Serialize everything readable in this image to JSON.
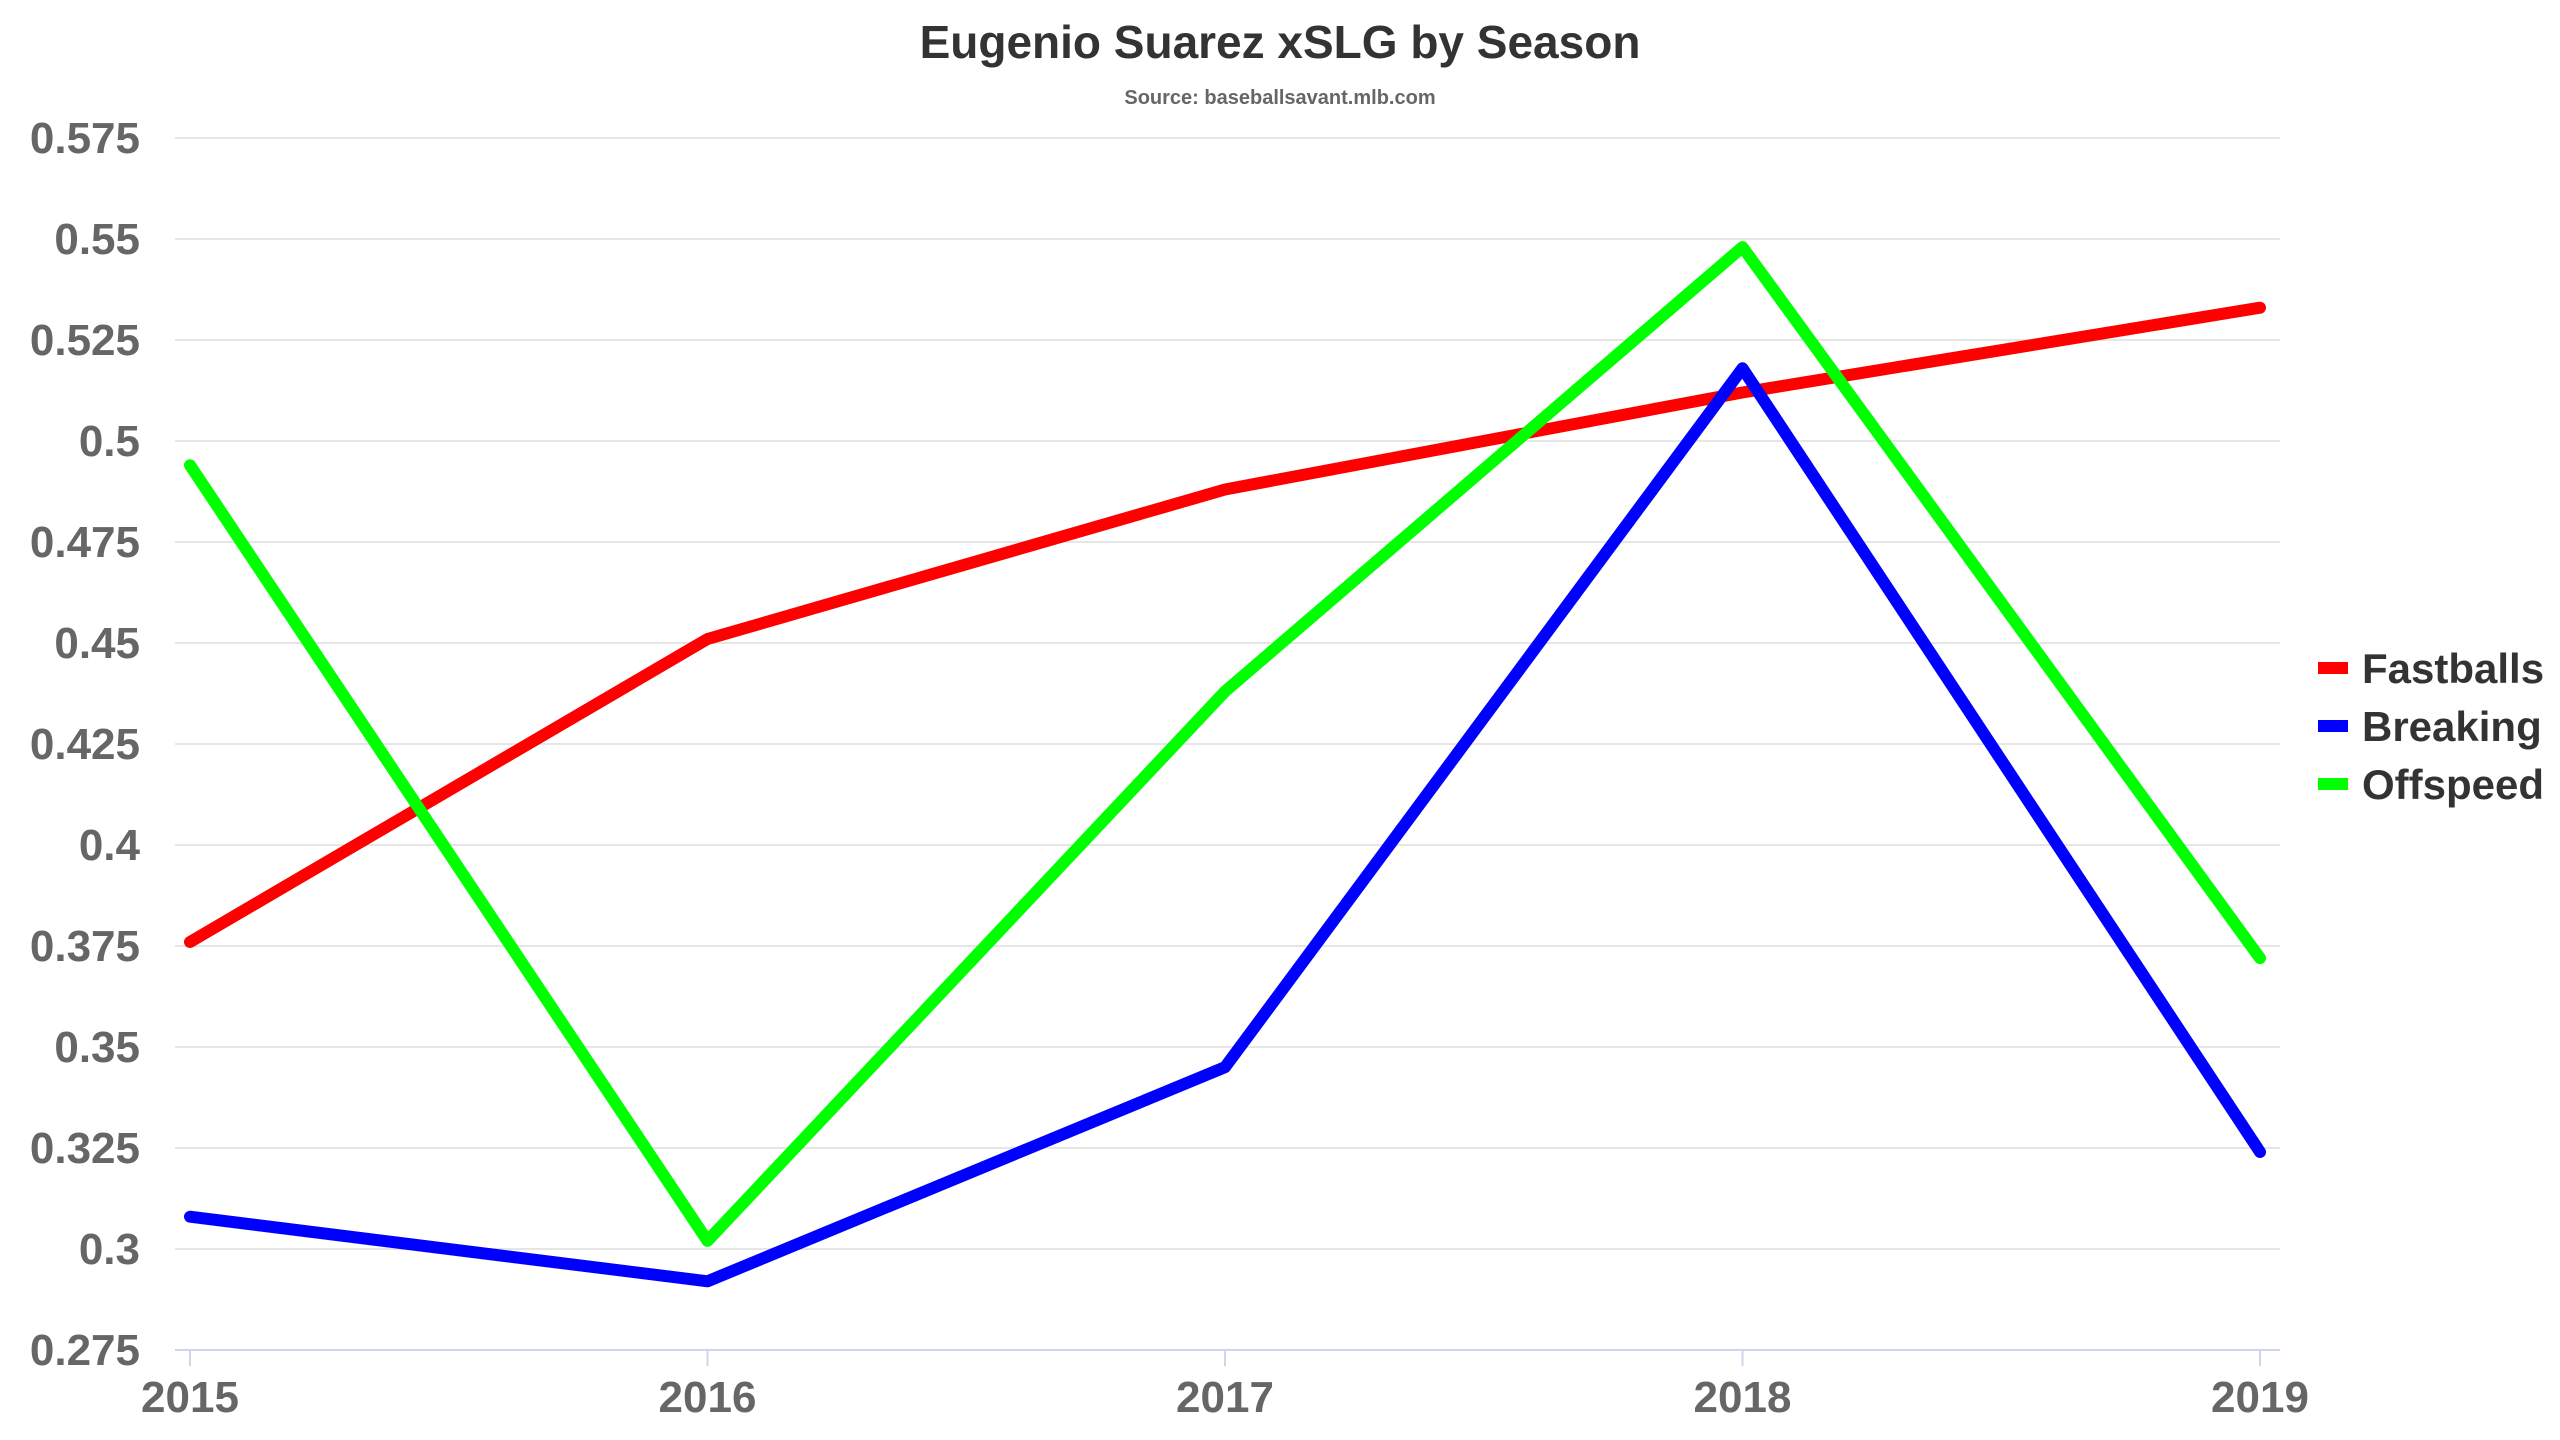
{
  "chart_data": {
    "type": "line",
    "title": "Eugenio Suarez xSLG by Season",
    "subtitle": "Source: baseballsavant.mlb.com",
    "x": [
      "2015",
      "2016",
      "2017",
      "2018",
      "2019"
    ],
    "ylim": [
      0.275,
      0.575
    ],
    "yticks": [
      "0.275",
      "0.3",
      "0.325",
      "0.35",
      "0.375",
      "0.4",
      "0.425",
      "0.45",
      "0.475",
      "0.5",
      "0.525",
      "0.55",
      "0.575"
    ],
    "grid": true,
    "legend_position": "right",
    "series": [
      {
        "name": "Fastballs",
        "color": "#ff0000",
        "values": [
          0.376,
          0.451,
          0.488,
          0.512,
          0.533
        ]
      },
      {
        "name": "Breaking",
        "color": "#0000ff",
        "values": [
          0.308,
          0.292,
          0.345,
          0.518,
          0.324
        ]
      },
      {
        "name": "Offspeed",
        "color": "#00ff00",
        "values": [
          0.494,
          0.302,
          0.438,
          0.548,
          0.372
        ]
      }
    ]
  }
}
